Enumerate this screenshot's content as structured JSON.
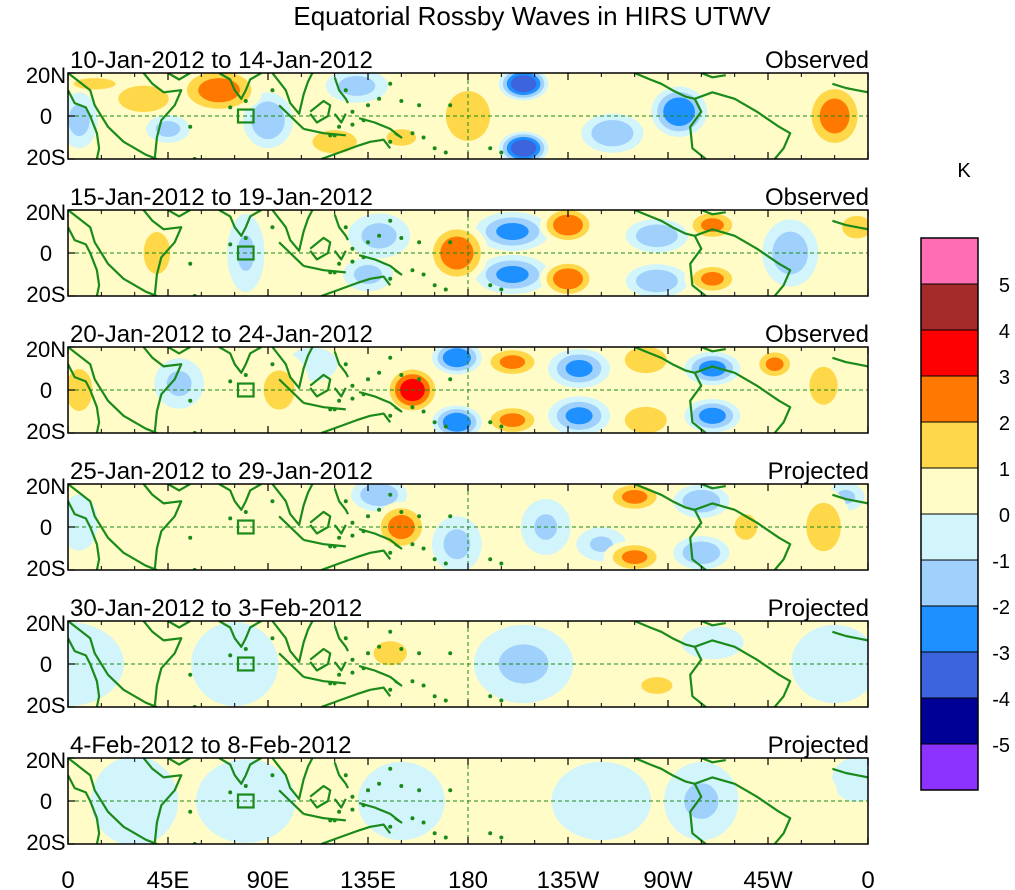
{
  "chart_data": {
    "type": "heatmap",
    "title": "Equatorial Rossby Waves in HIRS UTWV",
    "units": "K",
    "lat_tick_labels": [
      "20N",
      "0",
      "20S"
    ],
    "lon_tick_labels": [
      "0",
      "45E",
      "90E",
      "135E",
      "180",
      "135W",
      "90W",
      "45W",
      "0"
    ],
    "lat_range": [
      -20,
      20
    ],
    "lon_range": [
      0,
      360
    ],
    "color_levels": [
      {
        "label": "5",
        "color": "#ff6eb4"
      },
      {
        "label": "4",
        "color": "#a52a2a"
      },
      {
        "label": "3",
        "color": "#ff0000"
      },
      {
        "label": "2",
        "color": "#ff7800"
      },
      {
        "label": "1",
        "color": "#ffd84a"
      },
      {
        "label": "0",
        "color": "#fffcc8"
      },
      {
        "label": "-1",
        "color": "#d2f4fb"
      },
      {
        "label": "-2",
        "color": "#a0d0fc"
      },
      {
        "label": "-3",
        "color": "#1e90ff"
      },
      {
        "label": "-4",
        "color": "#3c64dc"
      },
      {
        "label": "-5",
        "color": "#000096"
      },
      {
        "label": "",
        "color": "#8c32ff"
      }
    ],
    "colorbar_labels": [
      "5",
      "4",
      "3",
      "2",
      "1",
      "0",
      "-1",
      "-2",
      "-3",
      "-4",
      "-5"
    ],
    "panels": [
      {
        "date_range": "10-Jan-2012 to 14-Jan-2012",
        "status": "Observed",
        "blobs": [
          [
            12,
            15,
            10,
            3,
            2
          ],
          [
            34,
            8,
            12,
            7,
            2
          ],
          [
            68,
            12,
            14,
            9,
            2.5
          ],
          [
            45,
            -6,
            7,
            5,
            -1.5
          ],
          [
            90,
            -2,
            8,
            10,
            -2
          ],
          [
            120,
            -12,
            12,
            7,
            1.6
          ],
          [
            130,
            14,
            10,
            6,
            -1.6
          ],
          [
            150,
            -10,
            8,
            5,
            1.6
          ],
          [
            180,
            0,
            12,
            15,
            1.6
          ],
          [
            205,
            15,
            8,
            6,
            -4
          ],
          [
            205,
            -15,
            8,
            6,
            -4
          ],
          [
            245,
            -8,
            10,
            7,
            -2
          ],
          [
            275,
            2,
            9,
            9,
            -3
          ],
          [
            345,
            0,
            10,
            13,
            2.5
          ],
          [
            5,
            -2,
            6,
            10,
            -1.5
          ]
        ]
      },
      {
        "date_range": "15-Jan-2012 to 19-Jan-2012",
        "status": "Observed",
        "blobs": [
          [
            40,
            0,
            8,
            14,
            1.4
          ],
          [
            80,
            0,
            6,
            14,
            -1.2
          ],
          [
            140,
            8,
            10,
            8,
            -1.5
          ],
          [
            135,
            -10,
            8,
            6,
            -1.5
          ],
          [
            175,
            0,
            10,
            11,
            2.8
          ],
          [
            200,
            10,
            12,
            7,
            -2.3
          ],
          [
            200,
            -10,
            12,
            7,
            -2.3
          ],
          [
            225,
            13,
            9,
            7,
            2.8
          ],
          [
            225,
            -12,
            9,
            7,
            2.8
          ],
          [
            265,
            8,
            10,
            6,
            -2
          ],
          [
            265,
            -13,
            10,
            6,
            -2
          ],
          [
            290,
            13,
            9,
            6,
            2.2
          ],
          [
            290,
            -12,
            9,
            6,
            2.2
          ],
          [
            325,
            0,
            9,
            12,
            -1.8
          ],
          [
            355,
            12,
            7,
            6,
            2
          ]
        ]
      },
      {
        "date_range": "20-Jan-2012 to 24-Jan-2012",
        "status": "Observed",
        "blobs": [
          [
            5,
            0,
            8,
            14,
            1.4
          ],
          [
            50,
            3,
            8,
            9,
            -1.3
          ],
          [
            95,
            0,
            10,
            14,
            1.3
          ],
          [
            110,
            12,
            8,
            6,
            -1
          ],
          [
            155,
            0,
            9,
            9,
            3.5
          ],
          [
            175,
            15,
            8,
            6,
            -3
          ],
          [
            175,
            -15,
            8,
            6,
            -3
          ],
          [
            200,
            13,
            10,
            6,
            2.2
          ],
          [
            200,
            -14,
            10,
            6,
            2.2
          ],
          [
            230,
            10,
            10,
            7,
            -2.3
          ],
          [
            230,
            -12,
            10,
            7,
            -2.3
          ],
          [
            260,
            14,
            10,
            7,
            2
          ],
          [
            260,
            -14,
            10,
            7,
            2
          ],
          [
            290,
            10,
            9,
            6,
            -2.5
          ],
          [
            290,
            -12,
            9,
            6,
            -2.5
          ],
          [
            318,
            12,
            7,
            6,
            2.2
          ],
          [
            340,
            2,
            8,
            12,
            1.5
          ]
        ]
      },
      {
        "date_range": "25-Jan-2012 to 29-Jan-2012",
        "status": "Projected",
        "blobs": [
          [
            5,
            2,
            6,
            10,
            -1
          ],
          [
            50,
            0,
            15,
            15,
            0.8
          ],
          [
            140,
            15,
            9,
            6,
            -2
          ],
          [
            150,
            0,
            9,
            9,
            2.5
          ],
          [
            175,
            -8,
            8,
            10,
            -1.4
          ],
          [
            215,
            0,
            8,
            10,
            -1.2
          ],
          [
            240,
            -8,
            8,
            6,
            -1.2
          ],
          [
            255,
            14,
            10,
            6,
            2.2
          ],
          [
            255,
            -14,
            10,
            6,
            2.2
          ],
          [
            285,
            12,
            9,
            6,
            -2
          ],
          [
            285,
            -12,
            9,
            6,
            -2
          ],
          [
            305,
            0,
            8,
            10,
            1.2
          ],
          [
            340,
            0,
            9,
            14,
            1.7
          ],
          [
            350,
            14,
            6,
            5,
            -1.3
          ]
        ]
      },
      {
        "date_range": "30-Jan-2012 to 3-Feb-2012",
        "status": "Projected",
        "blobs": [
          [
            0,
            0,
            18,
            15,
            -0.8
          ],
          [
            40,
            5,
            20,
            15,
            0.7
          ],
          [
            75,
            0,
            14,
            15,
            -1
          ],
          [
            145,
            5,
            10,
            8,
            1.4
          ],
          [
            205,
            0,
            16,
            14,
            -1.3
          ],
          [
            250,
            0,
            12,
            12,
            0.9
          ],
          [
            265,
            -10,
            10,
            6,
            1.3
          ],
          [
            290,
            10,
            10,
            6,
            -0.9
          ],
          [
            345,
            0,
            14,
            14,
            -0.9
          ],
          [
            330,
            0,
            8,
            10,
            0.7
          ]
        ]
      },
      {
        "date_range": "4-Feb-2012 to 8-Feb-2012",
        "status": "Projected",
        "blobs": [
          [
            0,
            0,
            12,
            14,
            0.7
          ],
          [
            30,
            0,
            14,
            16,
            -0.9
          ],
          [
            80,
            0,
            16,
            15,
            -0.9
          ],
          [
            110,
            0,
            14,
            14,
            0.6
          ],
          [
            150,
            0,
            14,
            14,
            -0.9
          ],
          [
            195,
            0,
            16,
            14,
            0.7
          ],
          [
            240,
            0,
            16,
            14,
            -0.9
          ],
          [
            285,
            0,
            12,
            14,
            -1.2
          ],
          [
            330,
            0,
            12,
            14,
            0.8
          ],
          [
            355,
            10,
            8,
            8,
            -0.7
          ]
        ]
      }
    ]
  }
}
